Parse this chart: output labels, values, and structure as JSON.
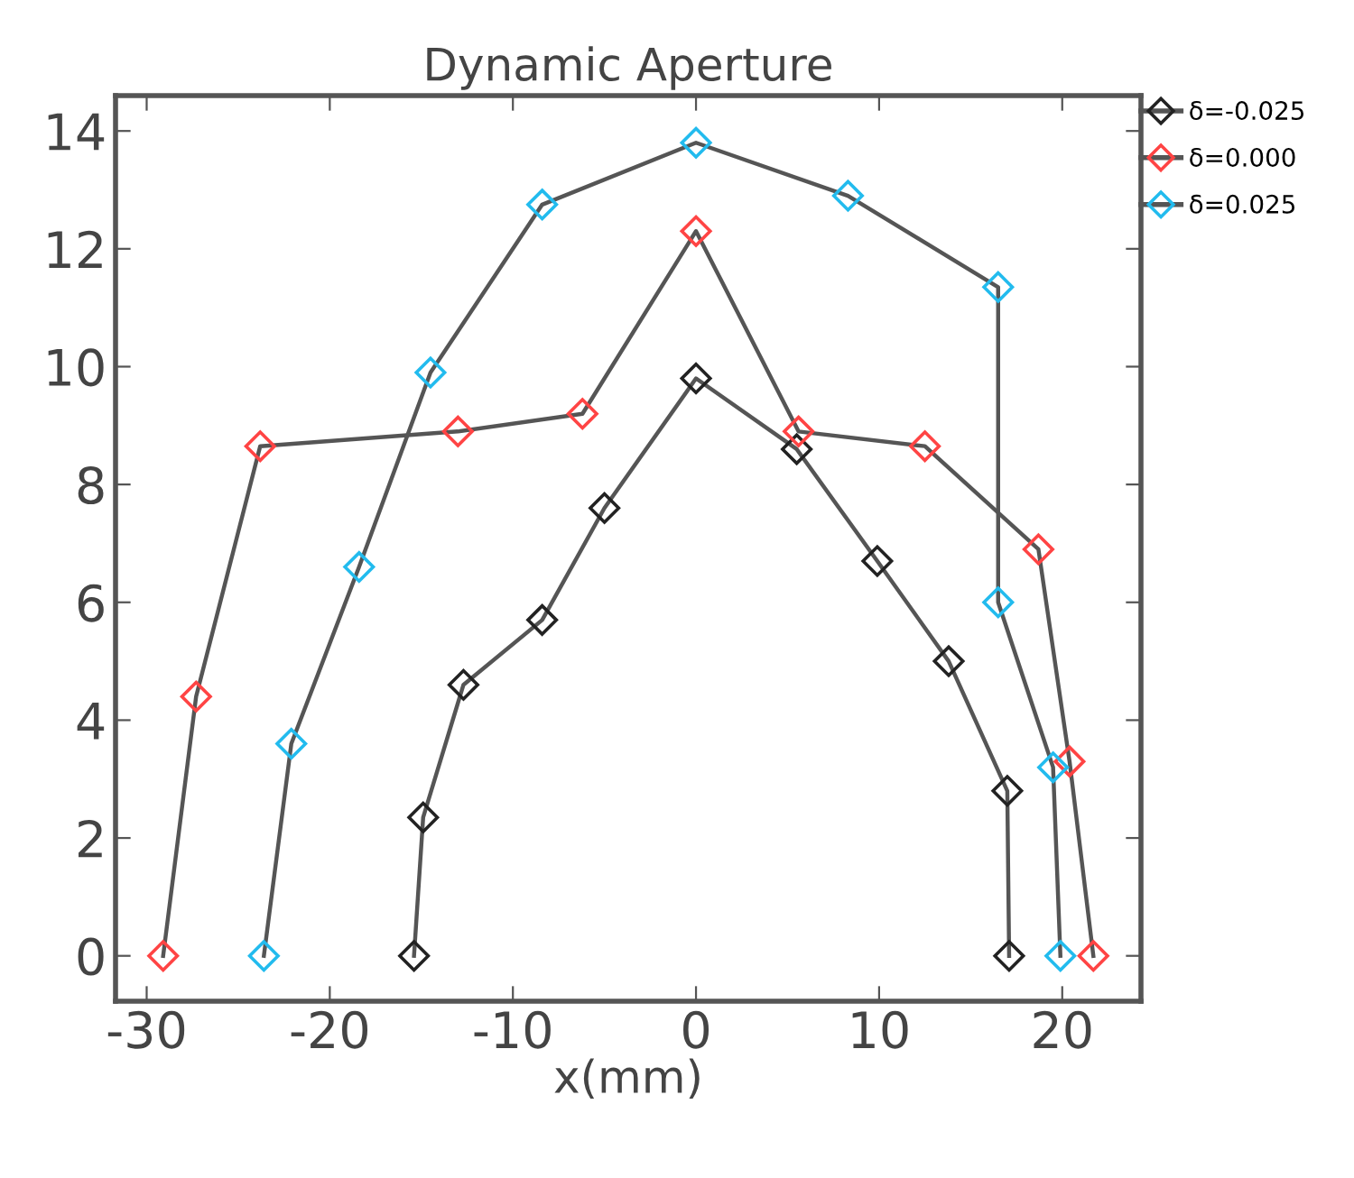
{
  "chart_data": {
    "type": "line",
    "title": "Dynamic Aperture",
    "xlabel": "x(mm)",
    "marker": "diamond",
    "legend": "right",
    "grid": false,
    "xlim": [
      -31.7,
      24.3
    ],
    "ylim": [
      -0.77,
      14.6
    ],
    "xticks": [
      -30,
      -20,
      -10,
      0,
      10,
      20
    ],
    "yticks": [
      0,
      2,
      4,
      6,
      8,
      10,
      12,
      14
    ],
    "series": [
      {
        "name": "δ=-0.025",
        "color": "#222222",
        "x": [
          -15.4,
          -14.9,
          -12.7,
          -8.4,
          -5.0,
          0,
          5.5,
          9.9,
          13.8,
          17.0,
          17.1
        ],
        "values": [
          0,
          2.35,
          4.6,
          5.7,
          7.6,
          9.8,
          8.6,
          6.7,
          5.0,
          2.8,
          0
        ]
      },
      {
        "name": "δ=0.000",
        "color": "#ff4444",
        "x": [
          -29.1,
          -27.3,
          -23.8,
          -13.0,
          -6.2,
          0,
          5.6,
          12.5,
          18.7,
          20.4,
          21.7
        ],
        "values": [
          0,
          4.4,
          8.65,
          8.9,
          9.2,
          12.3,
          8.9,
          8.65,
          6.9,
          3.3,
          0
        ]
      },
      {
        "name": "δ=0.025",
        "color": "#22bbee",
        "x": [
          -23.6,
          -22.1,
          -18.4,
          -14.5,
          -8.4,
          0,
          8.3,
          16.5,
          16.5,
          19.5,
          19.9
        ],
        "values": [
          0,
          3.6,
          6.6,
          9.9,
          12.75,
          13.8,
          12.9,
          11.35,
          6.0,
          3.2,
          0
        ]
      }
    ]
  }
}
